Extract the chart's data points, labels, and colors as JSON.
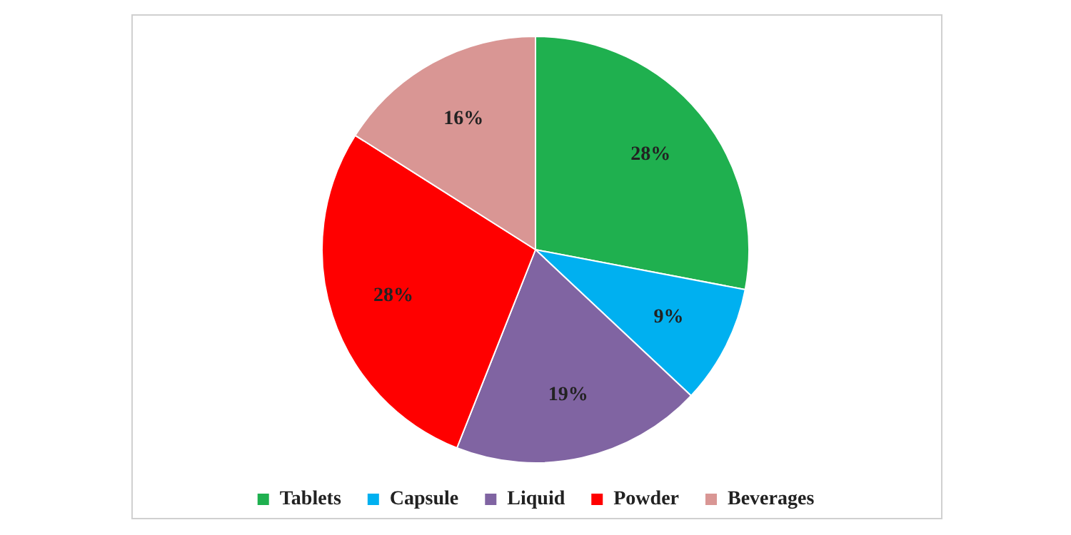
{
  "chart_data": {
    "type": "pie",
    "categories": [
      "Tablets",
      "Capsule",
      "Liquid",
      "Powder",
      "Beverages"
    ],
    "values": [
      28,
      9,
      19,
      28,
      16
    ],
    "colors": [
      "#1fb04f",
      "#00b0f0",
      "#8064a2",
      "#ff0000",
      "#d99694"
    ],
    "value_labels": [
      "28%",
      "9%",
      "19%",
      "28%",
      "16%"
    ],
    "legend": "bottom"
  }
}
